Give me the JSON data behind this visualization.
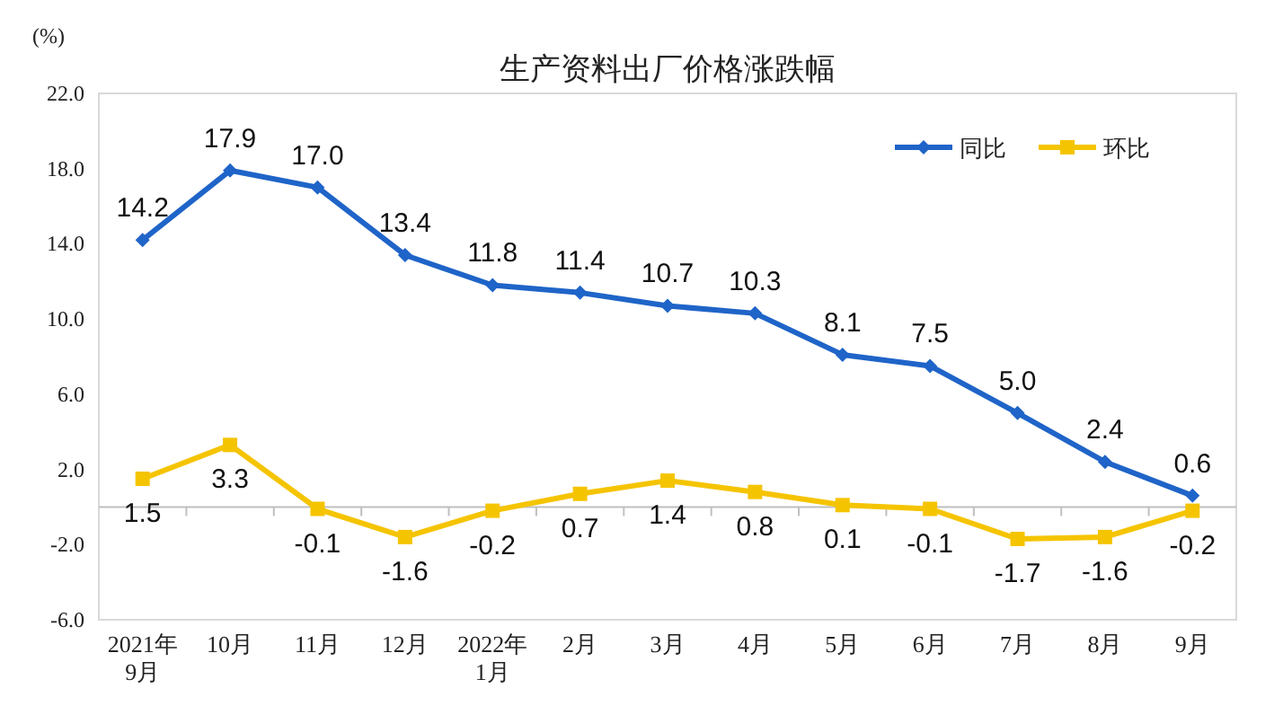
{
  "chart_data": {
    "type": "line",
    "title": "生产资料出厂价格涨跌幅",
    "ylabel": "(%)",
    "categories": [
      "2021年\n9月",
      "10月",
      "11月",
      "12月",
      "2022年\n1月",
      "2月",
      "3月",
      "4月",
      "5月",
      "6月",
      "7月",
      "8月",
      "9月"
    ],
    "series": [
      {
        "name": "同比",
        "color": "#1f64c8",
        "marker": "diamond",
        "values": [
          14.2,
          17.9,
          17.0,
          13.4,
          11.8,
          11.4,
          10.7,
          10.3,
          8.1,
          7.5,
          5.0,
          2.4,
          0.6
        ],
        "value_labels": [
          "14.2",
          "17.9",
          "17.0",
          "13.4",
          "11.8",
          "11.4",
          "10.7",
          "10.3",
          "8.1",
          "7.5",
          "5.0",
          "2.4",
          "0.6"
        ]
      },
      {
        "name": "环比",
        "color": "#f5c400",
        "marker": "square",
        "values": [
          1.5,
          3.3,
          -0.1,
          -1.6,
          -0.2,
          0.7,
          1.4,
          0.8,
          0.1,
          -0.1,
          -1.7,
          -1.6,
          -0.2
        ],
        "value_labels": [
          "1.5",
          "3.3",
          "-0.1",
          "-1.6",
          "-0.2",
          "0.7",
          "1.4",
          "0.8",
          "0.1",
          "-0.1",
          "-1.7",
          "-1.6",
          "-0.2"
        ]
      }
    ],
    "ylim": [
      -6,
      22
    ],
    "yticks": [
      {
        "value": -6,
        "label": "-6.0"
      },
      {
        "value": -2,
        "label": "-2.0"
      },
      {
        "value": 2,
        "label": "2.0"
      },
      {
        "value": 6,
        "label": "6.0"
      },
      {
        "value": 10,
        "label": "10.0"
      },
      {
        "value": 14,
        "label": "14.0"
      },
      {
        "value": 18,
        "label": "18.0"
      },
      {
        "value": 22,
        "label": "22.0"
      }
    ],
    "legend": "top right",
    "grid": false
  }
}
